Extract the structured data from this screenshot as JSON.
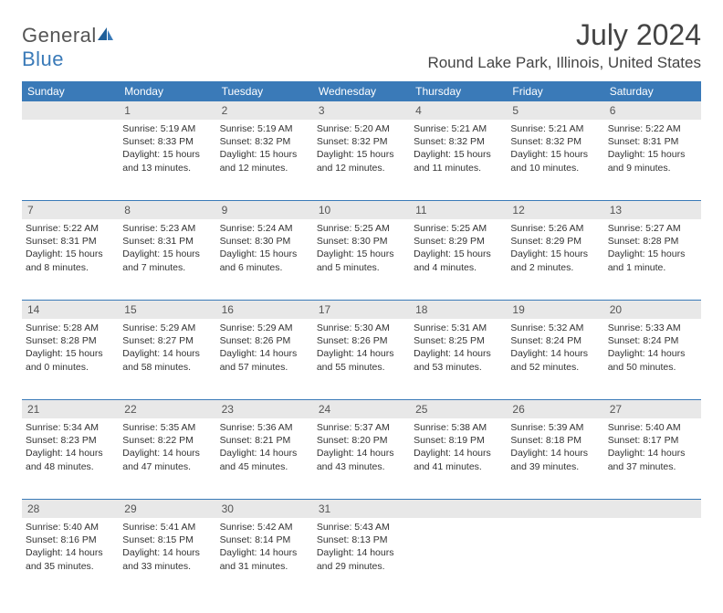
{
  "brand": {
    "part1": "General",
    "part2": "Blue"
  },
  "title": "July 2024",
  "location": "Round Lake Park, Illinois, United States",
  "colors": {
    "accent": "#3a7ab8",
    "daynum_bg": "#e8e8e8",
    "text": "#333333",
    "title_text": "#444444"
  },
  "weekdays": [
    "Sunday",
    "Monday",
    "Tuesday",
    "Wednesday",
    "Thursday",
    "Friday",
    "Saturday"
  ],
  "start_offset": 1,
  "days_in_month": 31,
  "days": {
    "1": {
      "sunrise": "5:19 AM",
      "sunset": "8:33 PM",
      "daylight_l1": "Daylight: 15 hours",
      "daylight_l2": "and 13 minutes."
    },
    "2": {
      "sunrise": "5:19 AM",
      "sunset": "8:32 PM",
      "daylight_l1": "Daylight: 15 hours",
      "daylight_l2": "and 12 minutes."
    },
    "3": {
      "sunrise": "5:20 AM",
      "sunset": "8:32 PM",
      "daylight_l1": "Daylight: 15 hours",
      "daylight_l2": "and 12 minutes."
    },
    "4": {
      "sunrise": "5:21 AM",
      "sunset": "8:32 PM",
      "daylight_l1": "Daylight: 15 hours",
      "daylight_l2": "and 11 minutes."
    },
    "5": {
      "sunrise": "5:21 AM",
      "sunset": "8:32 PM",
      "daylight_l1": "Daylight: 15 hours",
      "daylight_l2": "and 10 minutes."
    },
    "6": {
      "sunrise": "5:22 AM",
      "sunset": "8:31 PM",
      "daylight_l1": "Daylight: 15 hours",
      "daylight_l2": "and 9 minutes."
    },
    "7": {
      "sunrise": "5:22 AM",
      "sunset": "8:31 PM",
      "daylight_l1": "Daylight: 15 hours",
      "daylight_l2": "and 8 minutes."
    },
    "8": {
      "sunrise": "5:23 AM",
      "sunset": "8:31 PM",
      "daylight_l1": "Daylight: 15 hours",
      "daylight_l2": "and 7 minutes."
    },
    "9": {
      "sunrise": "5:24 AM",
      "sunset": "8:30 PM",
      "daylight_l1": "Daylight: 15 hours",
      "daylight_l2": "and 6 minutes."
    },
    "10": {
      "sunrise": "5:25 AM",
      "sunset": "8:30 PM",
      "daylight_l1": "Daylight: 15 hours",
      "daylight_l2": "and 5 minutes."
    },
    "11": {
      "sunrise": "5:25 AM",
      "sunset": "8:29 PM",
      "daylight_l1": "Daylight: 15 hours",
      "daylight_l2": "and 4 minutes."
    },
    "12": {
      "sunrise": "5:26 AM",
      "sunset": "8:29 PM",
      "daylight_l1": "Daylight: 15 hours",
      "daylight_l2": "and 2 minutes."
    },
    "13": {
      "sunrise": "5:27 AM",
      "sunset": "8:28 PM",
      "daylight_l1": "Daylight: 15 hours",
      "daylight_l2": "and 1 minute."
    },
    "14": {
      "sunrise": "5:28 AM",
      "sunset": "8:28 PM",
      "daylight_l1": "Daylight: 15 hours",
      "daylight_l2": "and 0 minutes."
    },
    "15": {
      "sunrise": "5:29 AM",
      "sunset": "8:27 PM",
      "daylight_l1": "Daylight: 14 hours",
      "daylight_l2": "and 58 minutes."
    },
    "16": {
      "sunrise": "5:29 AM",
      "sunset": "8:26 PM",
      "daylight_l1": "Daylight: 14 hours",
      "daylight_l2": "and 57 minutes."
    },
    "17": {
      "sunrise": "5:30 AM",
      "sunset": "8:26 PM",
      "daylight_l1": "Daylight: 14 hours",
      "daylight_l2": "and 55 minutes."
    },
    "18": {
      "sunrise": "5:31 AM",
      "sunset": "8:25 PM",
      "daylight_l1": "Daylight: 14 hours",
      "daylight_l2": "and 53 minutes."
    },
    "19": {
      "sunrise": "5:32 AM",
      "sunset": "8:24 PM",
      "daylight_l1": "Daylight: 14 hours",
      "daylight_l2": "and 52 minutes."
    },
    "20": {
      "sunrise": "5:33 AM",
      "sunset": "8:24 PM",
      "daylight_l1": "Daylight: 14 hours",
      "daylight_l2": "and 50 minutes."
    },
    "21": {
      "sunrise": "5:34 AM",
      "sunset": "8:23 PM",
      "daylight_l1": "Daylight: 14 hours",
      "daylight_l2": "and 48 minutes."
    },
    "22": {
      "sunrise": "5:35 AM",
      "sunset": "8:22 PM",
      "daylight_l1": "Daylight: 14 hours",
      "daylight_l2": "and 47 minutes."
    },
    "23": {
      "sunrise": "5:36 AM",
      "sunset": "8:21 PM",
      "daylight_l1": "Daylight: 14 hours",
      "daylight_l2": "and 45 minutes."
    },
    "24": {
      "sunrise": "5:37 AM",
      "sunset": "8:20 PM",
      "daylight_l1": "Daylight: 14 hours",
      "daylight_l2": "and 43 minutes."
    },
    "25": {
      "sunrise": "5:38 AM",
      "sunset": "8:19 PM",
      "daylight_l1": "Daylight: 14 hours",
      "daylight_l2": "and 41 minutes."
    },
    "26": {
      "sunrise": "5:39 AM",
      "sunset": "8:18 PM",
      "daylight_l1": "Daylight: 14 hours",
      "daylight_l2": "and 39 minutes."
    },
    "27": {
      "sunrise": "5:40 AM",
      "sunset": "8:17 PM",
      "daylight_l1": "Daylight: 14 hours",
      "daylight_l2": "and 37 minutes."
    },
    "28": {
      "sunrise": "5:40 AM",
      "sunset": "8:16 PM",
      "daylight_l1": "Daylight: 14 hours",
      "daylight_l2": "and 35 minutes."
    },
    "29": {
      "sunrise": "5:41 AM",
      "sunset": "8:15 PM",
      "daylight_l1": "Daylight: 14 hours",
      "daylight_l2": "and 33 minutes."
    },
    "30": {
      "sunrise": "5:42 AM",
      "sunset": "8:14 PM",
      "daylight_l1": "Daylight: 14 hours",
      "daylight_l2": "and 31 minutes."
    },
    "31": {
      "sunrise": "5:43 AM",
      "sunset": "8:13 PM",
      "daylight_l1": "Daylight: 14 hours",
      "daylight_l2": "and 29 minutes."
    }
  }
}
